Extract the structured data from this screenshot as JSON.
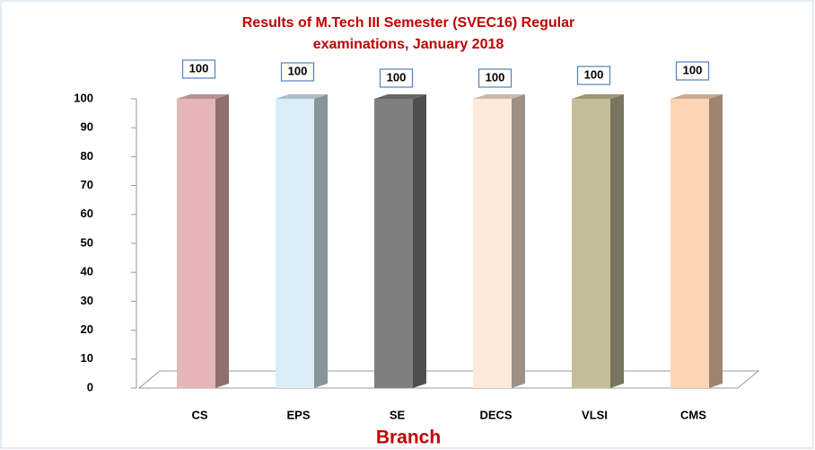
{
  "chart_data": {
    "type": "bar3d",
    "title": [
      "Results of M.Tech III Semester  (SVEC16) Regular",
      "examinations, January 2018"
    ],
    "xlabel": "Branch",
    "categories": [
      "CS",
      "EPS",
      "SE",
      "DECS",
      "VLSI",
      "CMS"
    ],
    "values": [
      100,
      100,
      100,
      100,
      100,
      100
    ],
    "colors": [
      "#e6b5b7",
      "#daeef7",
      "#7f7f7f",
      "#fde9d9",
      "#c4bd97",
      "#fcd5b4"
    ],
    "ylim": [
      0,
      100
    ],
    "yticks": [
      0,
      10,
      20,
      30,
      40,
      50,
      60,
      70,
      80,
      90,
      100
    ]
  }
}
